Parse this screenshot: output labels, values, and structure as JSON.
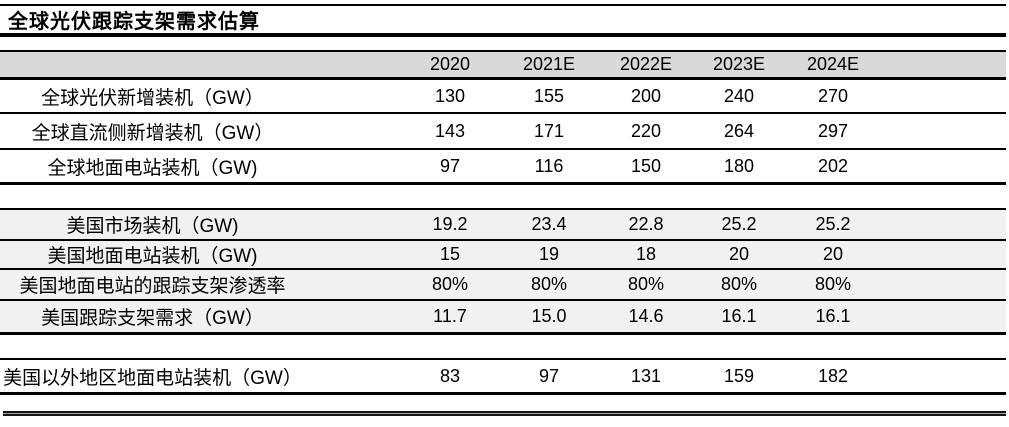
{
  "title": "全球光伏跟踪支架需求估算",
  "table": {
    "year_columns": [
      "2020",
      "2021E",
      "2022E",
      "2023E",
      "2024E"
    ],
    "rows": [
      {
        "label": "全球光伏新增装机（GW）",
        "values": [
          "130",
          "155",
          "200",
          "240",
          "270"
        ]
      },
      {
        "label": "全球直流侧新增装机（GW）",
        "values": [
          "143",
          "171",
          "220",
          "264",
          "297"
        ]
      },
      {
        "label": "全球地面电站装机（GW)",
        "values": [
          "97",
          "116",
          "150",
          "180",
          "202"
        ]
      },
      {
        "label": "美国市场装机（GW)",
        "values": [
          "19.2",
          "23.4",
          "22.8",
          "25.2",
          "25.2"
        ]
      },
      {
        "label": "美国地面电站装机（GW)",
        "values": [
          "15",
          "19",
          "18",
          "20",
          "20"
        ]
      },
      {
        "label": "美国地面电站的跟踪支架渗透率",
        "values": [
          "80%",
          "80%",
          "80%",
          "80%",
          "80%"
        ]
      },
      {
        "label": "美国跟踪支架需求（GW）",
        "values": [
          "11.7",
          "15.0",
          "14.6",
          "16.1",
          "16.1"
        ]
      },
      {
        "label": "美国以外地区地面电站装机（GW）",
        "values": [
          "83",
          "97",
          "131",
          "159",
          "182"
        ]
      }
    ]
  },
  "colors": {
    "header_bg": "#d9d9d9",
    "band_bg": "#f1f1f1",
    "rule": "#000000"
  },
  "chart_data": {
    "type": "table",
    "title": "全球光伏跟踪支架需求估算",
    "categories": [
      "2020",
      "2021E",
      "2022E",
      "2023E",
      "2024E"
    ],
    "series": [
      {
        "name": "全球光伏新增装机（GW）",
        "values": [
          130,
          155,
          200,
          240,
          270
        ]
      },
      {
        "name": "全球直流侧新增装机（GW）",
        "values": [
          143,
          171,
          220,
          264,
          297
        ]
      },
      {
        "name": "全球地面电站装机（GW)",
        "values": [
          97,
          116,
          150,
          180,
          202
        ]
      },
      {
        "name": "美国市场装机（GW)",
        "values": [
          19.2,
          23.4,
          22.8,
          25.2,
          25.2
        ]
      },
      {
        "name": "美国地面电站装机（GW)",
        "values": [
          15,
          19,
          18,
          20,
          20
        ]
      },
      {
        "name": "美国地面电站的跟踪支架渗透率",
        "values": [
          "80%",
          "80%",
          "80%",
          "80%",
          "80%"
        ]
      },
      {
        "name": "美国跟踪支架需求（GW）",
        "values": [
          11.7,
          15.0,
          14.6,
          16.1,
          16.1
        ]
      },
      {
        "name": "美国以外地区地面电站装机（GW）",
        "values": [
          83,
          97,
          131,
          159,
          182
        ]
      }
    ]
  }
}
